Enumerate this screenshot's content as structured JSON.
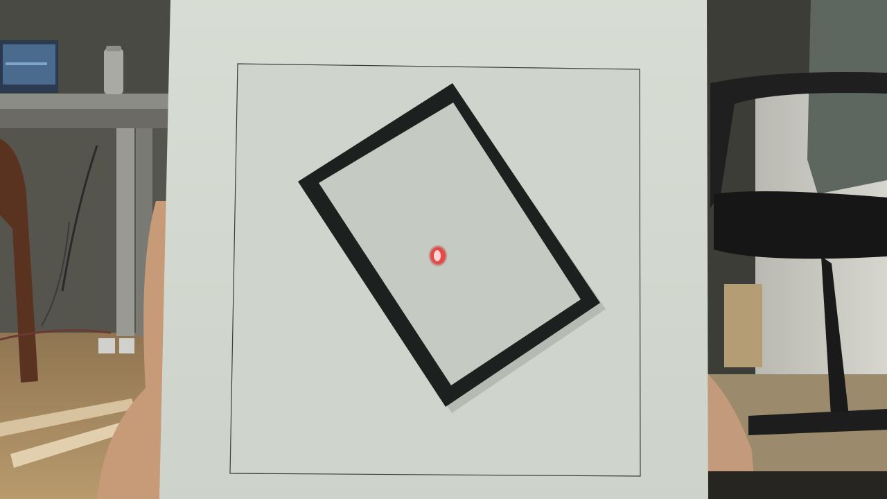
{
  "scene": {
    "colors": {
      "board": "#d6dbd2",
      "board_inner": "#cfd5cc",
      "frame": "#1d211f",
      "frame_fill": "#c4cac2",
      "laser": "#ff2a2a",
      "floor": "#b08e62",
      "wall_left": "#5c5b54",
      "wall_right": "#cfcfc8",
      "desk": "#8a8a84",
      "chair": "#1b1b1b"
    }
  }
}
